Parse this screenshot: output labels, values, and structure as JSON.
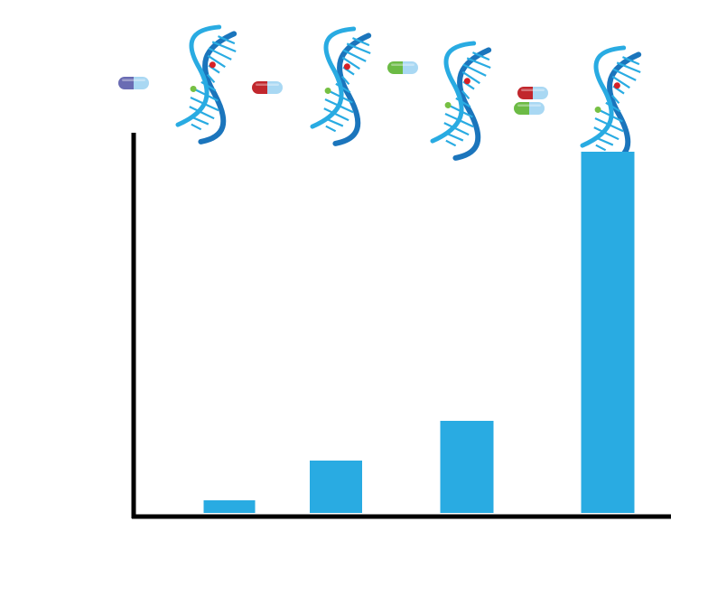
{
  "colors": {
    "bar": "#29abe2",
    "axis": "#000000",
    "helix_dark": "#1b75bc",
    "helix_light": "#29abe2",
    "mark_red": "#d62027",
    "mark_green": "#76c043",
    "pill_blue": "#a9d8f3",
    "pill_red": "#c1272d",
    "pill_green": "#6cbb45",
    "pill_purple": "#6a6cb3"
  },
  "icons": {
    "left_pill": "purple-blue-capsule",
    "helix_1": "dna-helix",
    "helix_2": "dna-helix",
    "helix_3": "dna-helix",
    "helix_4": "dna-helix",
    "pill_1": "red-blue-capsule",
    "pill_2": "green-blue-capsule",
    "pill_3a": "red-blue-capsule",
    "pill_3b": "green-blue-capsule"
  },
  "chart_data": {
    "type": "bar",
    "categories": [
      "",
      "",
      "",
      ""
    ],
    "values": [
      0.35,
      1.45,
      2.55,
      10.0
    ],
    "ylim": [
      0,
      12
    ],
    "grid": false,
    "title": "",
    "xlabel": "",
    "ylabel": ""
  }
}
